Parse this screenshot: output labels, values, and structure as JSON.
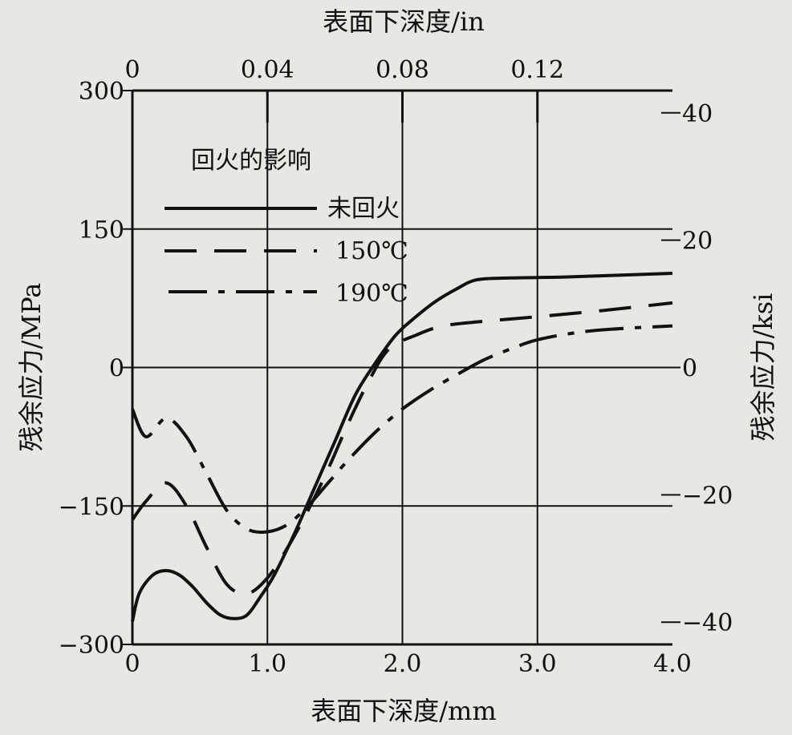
{
  "chart_data": {
    "type": "line",
    "title": "",
    "xlabel": "表面下深度/mm",
    "xlabel_top": "表面下深度/in",
    "ylabel": "残余应力/MPa",
    "ylabel_right": "残余应力/ksi",
    "xlim": [
      0,
      4.0
    ],
    "ylim": [
      -300,
      300
    ],
    "xlim_top": [
      0,
      0.16
    ],
    "ylim_right": [
      -43.5,
      43.5
    ],
    "x_ticks": [
      "0",
      "1.0",
      "2.0",
      "3.0",
      "4.0"
    ],
    "x_ticks_top": [
      "0",
      "0.04",
      "0.08",
      "0.12"
    ],
    "y_ticks": [
      "300",
      "150",
      "0",
      "−150",
      "−300"
    ],
    "y_ticks_right": [
      "40",
      "20",
      "0",
      "−20",
      "−40"
    ],
    "grid": true,
    "legend": {
      "title": "回火的影响",
      "placement": "top-left",
      "entries": [
        "未回火",
        "150℃",
        "190℃"
      ]
    },
    "series": [
      {
        "name": "未回火",
        "style": "solid",
        "x": [
          0,
          0.05,
          0.15,
          0.25,
          0.35,
          0.45,
          0.55,
          0.65,
          0.75,
          0.85,
          0.95,
          1.05,
          1.2,
          1.35,
          1.5,
          1.65,
          1.8,
          1.95,
          2.1,
          2.25,
          2.4,
          2.55,
          2.8,
          3.2,
          3.6,
          4.0
        ],
        "y": [
          -275,
          -245,
          -225,
          -220,
          -225,
          -238,
          -255,
          -268,
          -272,
          -268,
          -248,
          -225,
          -180,
          -130,
          -80,
          -30,
          5,
          35,
          55,
          72,
          85,
          95,
          97,
          98,
          100,
          102
        ]
      },
      {
        "name": "150℃",
        "style": "dashed",
        "x": [
          0,
          0.1,
          0.25,
          0.4,
          0.55,
          0.7,
          0.85,
          1.0,
          1.15,
          1.3,
          1.45,
          1.6,
          1.75,
          1.9,
          2.1,
          2.3,
          2.6,
          3.0,
          3.5,
          4.0
        ],
        "y": [
          -165,
          -145,
          -125,
          -150,
          -195,
          -235,
          -245,
          -228,
          -195,
          -155,
          -110,
          -60,
          -15,
          20,
          35,
          45,
          50,
          55,
          62,
          70
        ]
      },
      {
        "name": "190℃",
        "style": "dashdot",
        "x": [
          0,
          0.1,
          0.25,
          0.4,
          0.55,
          0.7,
          0.85,
          1.0,
          1.15,
          1.3,
          1.45,
          1.6,
          1.8,
          2.0,
          2.2,
          2.4,
          2.6,
          2.8,
          3.0,
          3.3,
          3.6,
          4.0
        ],
        "y": [
          -45,
          -75,
          -55,
          -75,
          -115,
          -155,
          -175,
          -178,
          -170,
          -150,
          -125,
          -100,
          -70,
          -45,
          -25,
          -8,
          8,
          20,
          30,
          38,
          42,
          45
        ]
      }
    ]
  }
}
